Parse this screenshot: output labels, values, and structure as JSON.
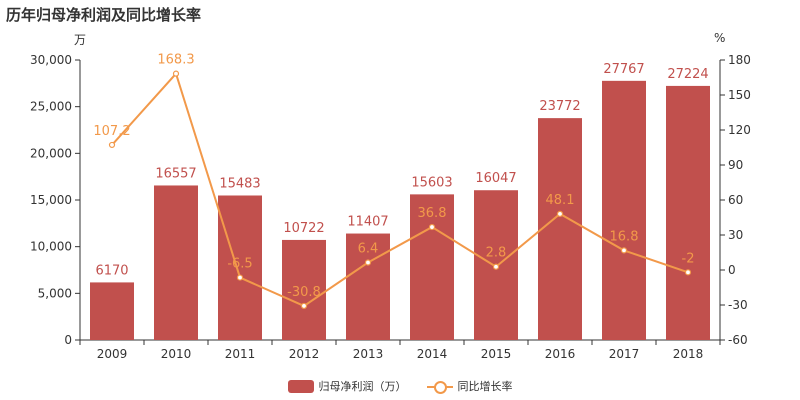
{
  "title": "历年归母净利润及同比增长率",
  "left_unit": "万",
  "right_unit": "%",
  "colors": {
    "bar": "#c1504d",
    "line": "#f2994a",
    "axis": "#333333"
  },
  "legend": {
    "bar_label": "归母净利润（万）",
    "line_label": "同比增长率"
  },
  "chart_data": {
    "type": "bar",
    "categories": [
      "2009",
      "2010",
      "2011",
      "2012",
      "2013",
      "2014",
      "2015",
      "2016",
      "2017",
      "2018"
    ],
    "series": [
      {
        "name": "归母净利润（万）",
        "type": "bar",
        "axis": "left",
        "values": [
          6170,
          16557,
          15483,
          10722,
          11407,
          15603,
          16047,
          23772,
          27767,
          27224
        ]
      },
      {
        "name": "同比增长率",
        "type": "line",
        "axis": "right",
        "values": [
          107.2,
          168.3,
          -6.5,
          -30.8,
          6.4,
          36.8,
          2.8,
          48.1,
          16.8,
          -2
        ]
      }
    ],
    "y_left": {
      "range": [
        0,
        30000
      ],
      "ticks": [
        "0",
        "5,000",
        "10,000",
        "15,000",
        "20,000",
        "25,000",
        "30,000"
      ],
      "tick_values": [
        0,
        5000,
        10000,
        15000,
        20000,
        25000,
        30000
      ]
    },
    "y_right": {
      "range": [
        -60,
        180
      ],
      "ticks": [
        "-60",
        "-30",
        "0",
        "30",
        "60",
        "90",
        "120",
        "150",
        "180"
      ],
      "tick_values": [
        -60,
        -30,
        0,
        30,
        60,
        90,
        120,
        150,
        180
      ]
    },
    "grid": false,
    "legend_position": "bottom"
  }
}
